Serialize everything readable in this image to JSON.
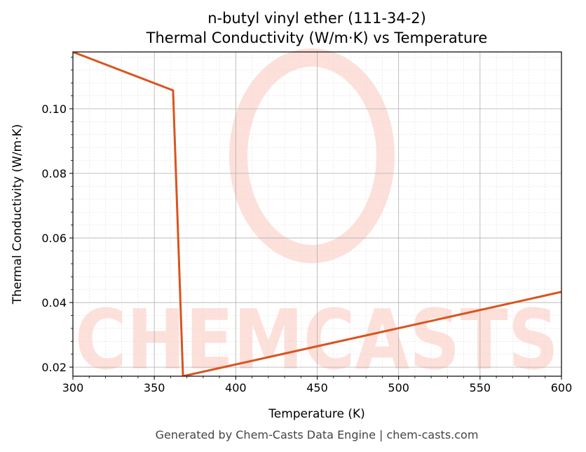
{
  "chart_data": {
    "type": "line",
    "title": "n-butyl vinyl ether (111-34-2)",
    "subtitle": "Thermal Conductivity (W/m·K) vs Temperature",
    "x_label": "Temperature (K)",
    "y_label": "Thermal Conductivity (W/m·K)",
    "footer": "Generated by Chem-Casts Data Engine | chem-casts.com",
    "watermark": "CHEMCASTS",
    "x": [
      300,
      361.5,
      367.6,
      600
    ],
    "series": [
      {
        "name": "Thermal Conductivity",
        "color": "#d9541e",
        "values": [
          0.1176,
          0.1057,
          0.0172,
          0.0433
        ]
      }
    ],
    "xlim": [
      300,
      600
    ],
    "xticks": [
      300,
      350,
      400,
      450,
      500,
      550,
      600
    ],
    "ylim": [
      0.0172,
      0.1176
    ],
    "yticks": [
      0.02,
      0.04,
      0.06,
      0.08,
      {
        "value": 0.1,
        "label": "0.10"
      }
    ],
    "grid": true
  }
}
